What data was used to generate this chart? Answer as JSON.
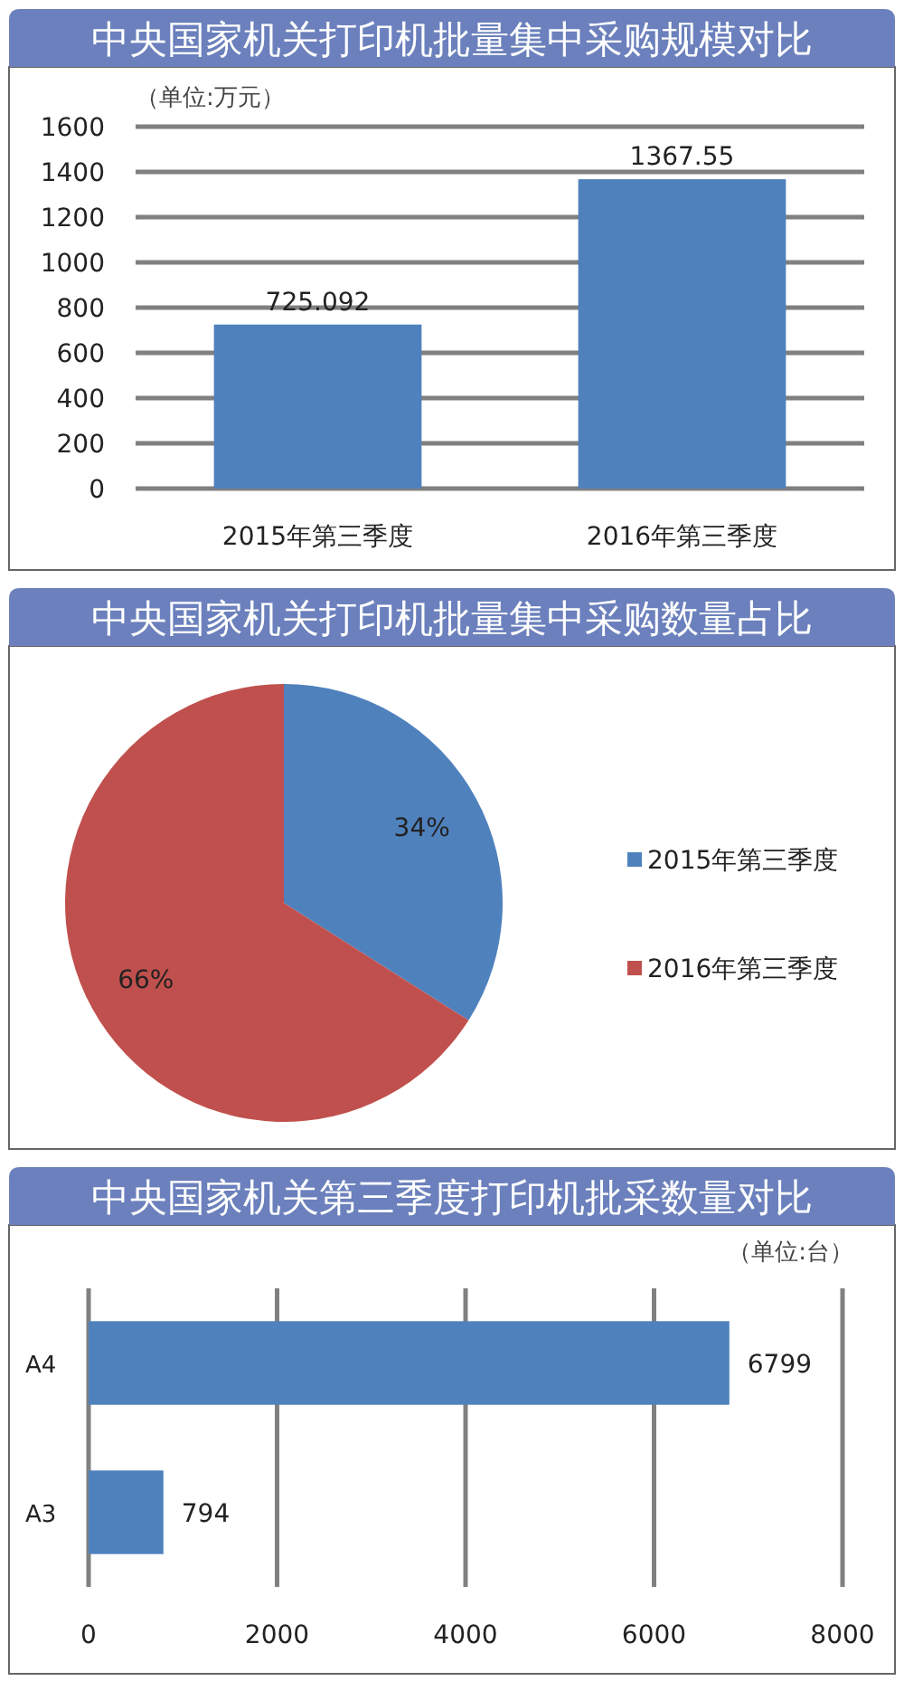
{
  "chart_data": [
    {
      "type": "bar",
      "title": "中央国家机关打印机批量集中采购规模对比",
      "annotations": [
        "（单位:万元）"
      ],
      "categories": [
        "2015年第三季度",
        "2016年第三季度"
      ],
      "values": [
        725.092,
        1367.55
      ],
      "color": "#4f81bd",
      "ylim": [
        0,
        1600
      ],
      "yticks": [
        0,
        200,
        400,
        600,
        800,
        1000,
        1200,
        1400,
        1600
      ],
      "grid": "y",
      "data_labels": true
    },
    {
      "type": "pie",
      "title": "中央国家机关打印机批量集中采购数量占比",
      "categories": [
        "2015年第三季度",
        "2016年第三季度"
      ],
      "values": [
        34,
        66
      ],
      "colors": [
        "#4f81bd",
        "#c0504d"
      ],
      "value_labels": [
        "34%",
        "66%"
      ],
      "legend": "right"
    },
    {
      "type": "bar",
      "orientation": "horizontal",
      "title": "中央国家机关第三季度打印机批采数量对比",
      "annotations": [
        "（单位:台）"
      ],
      "categories": [
        "A4",
        "A3"
      ],
      "values": [
        6799,
        794
      ],
      "color": "#4f81bd",
      "xlim": [
        0,
        8000
      ],
      "xticks": [
        0,
        2000,
        4000,
        6000,
        8000
      ],
      "grid": "x",
      "data_labels": true
    }
  ]
}
